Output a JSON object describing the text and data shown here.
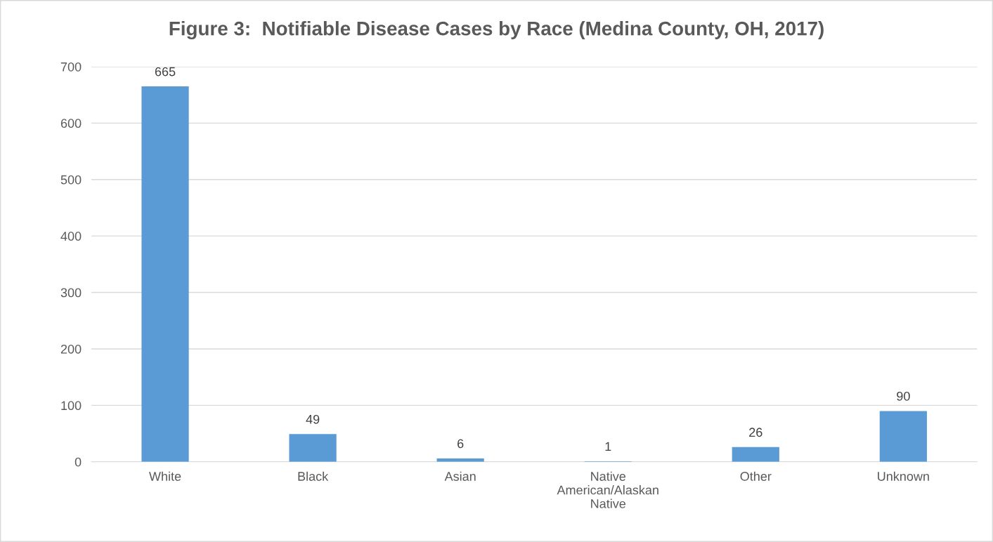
{
  "chart_data": {
    "type": "bar",
    "title": "Figure 3:  Notifiable Disease Cases by Race (Medina County, OH, 2017)",
    "categories": [
      "White",
      "Black",
      "Asian",
      "Native American/Alaskan Native",
      "Other",
      "Unknown"
    ],
    "values": [
      665,
      49,
      6,
      1,
      26,
      90
    ],
    "color": "#5b9bd5",
    "ylim": [
      0,
      700
    ],
    "yticks": [
      0,
      100,
      200,
      300,
      400,
      500,
      600,
      700
    ],
    "grid": "y",
    "data_labels": true
  }
}
